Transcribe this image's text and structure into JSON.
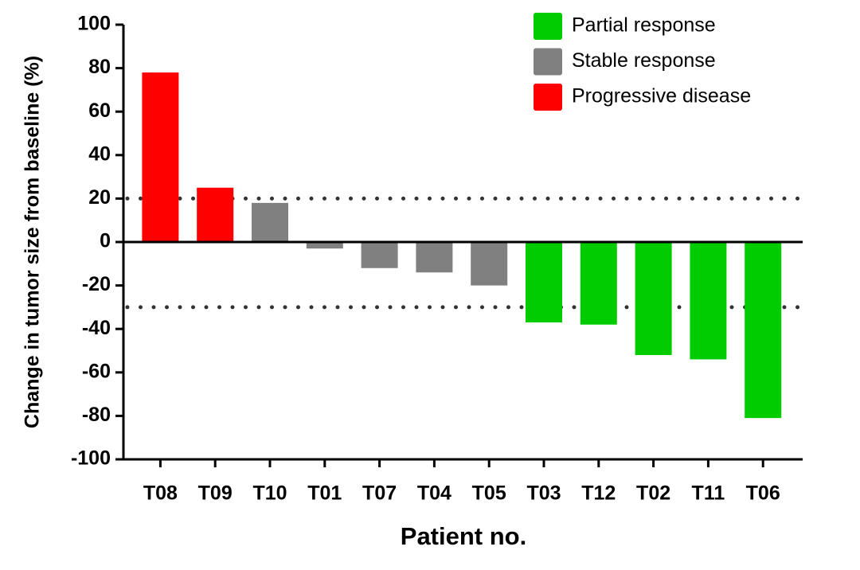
{
  "chart_data": {
    "type": "bar",
    "ylabel": "Change in tumor size from baseline (%)",
    "xlabel": "Patient no.",
    "categories": [
      "T08",
      "T09",
      "T10",
      "T01",
      "T07",
      "T04",
      "T05",
      "T03",
      "T12",
      "T02",
      "T11",
      "T06"
    ],
    "series": [
      {
        "name": "Partial response",
        "color": "#00cc00",
        "values": [
          null,
          null,
          null,
          null,
          null,
          null,
          null,
          -37,
          -38,
          -52,
          -54,
          -81
        ]
      },
      {
        "name": "Stable response",
        "color": "#808080",
        "values": [
          null,
          null,
          18,
          -3,
          -12,
          -14,
          -20,
          null,
          null,
          null,
          null,
          null
        ]
      },
      {
        "name": "Progressive disease",
        "color": "#ff0000",
        "values": [
          78,
          25,
          null,
          null,
          null,
          null,
          null,
          null,
          null,
          null,
          null,
          null
        ]
      }
    ],
    "reference_lines": [
      20,
      -30
    ],
    "ylim": [
      -100,
      100
    ],
    "yticks": [
      -100,
      -80,
      -60,
      -40,
      -20,
      0,
      20,
      40,
      60,
      80,
      100
    ],
    "legend": "upper right"
  }
}
